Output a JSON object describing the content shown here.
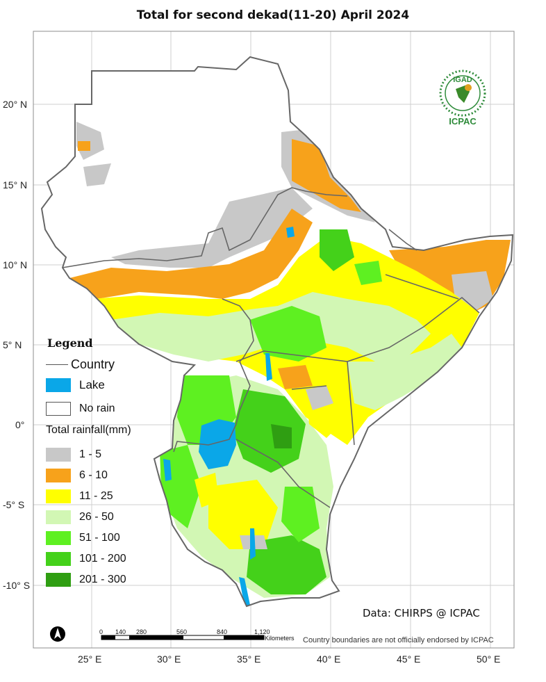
{
  "title": "Total  for second dekad(11-20) April 2024",
  "lat_labels": [
    "20° N",
    "15° N",
    "10° N",
    "5° N",
    "0°",
    "-5° S",
    "-10° S"
  ],
  "lon_labels": [
    "25° E",
    "30° E",
    "35° E",
    "40° E",
    "45° E",
    "50° E"
  ],
  "legend": {
    "title": "Legend",
    "country": "Country",
    "lake": "Lake",
    "no_rain": "No rain",
    "rainfall_title": "Total rainfall(mm)",
    "classes": [
      {
        "label": "1 - 5",
        "color": "#c8c8c8"
      },
      {
        "label": "6 - 10",
        "color": "#f7a21b"
      },
      {
        "label": "11 - 25",
        "color": "#ffff00"
      },
      {
        "label": "26 - 50",
        "color": "#d2f7b4"
      },
      {
        "label": "51 - 100",
        "color": "#5ef021"
      },
      {
        "label": "101 - 200",
        "color": "#44d11a"
      },
      {
        "label": "201 - 300",
        "color": "#2f9e12"
      }
    ],
    "lake_color": "#0aa7e8"
  },
  "data_source": "Data: CHIRPS @ ICPAC",
  "disclaimer": "Country boundaries are not officially endorsed by ICPAC",
  "scale_bar": {
    "ticks": [
      "0",
      "140",
      "280",
      "560",
      "840",
      "1,120"
    ],
    "unit": "Kilometers"
  },
  "logo": {
    "top_text": "IGAD",
    "bottom_text": "ICPAC"
  },
  "north_arrow_icon": "north-arrow-icon"
}
